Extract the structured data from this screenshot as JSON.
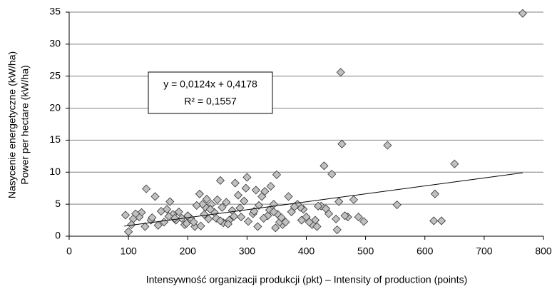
{
  "chart_data": {
    "type": "scatter",
    "xlabel": "Intensywność organizacji produkcji (pkt) – Intensity of production (points)",
    "ylabel": [
      "Nasycenie energetyczne (kW/ha)",
      "Power per hectare (kW/ha)"
    ],
    "annotations": [
      "y = 0,0124x + 0,4178",
      "R² = 0,1557"
    ],
    "trendline": {
      "slope": 0.0124,
      "intercept": 0.4178,
      "xlim": [
        93,
        765
      ]
    },
    "color": "#c0c0c0",
    "xlim": [
      0,
      800
    ],
    "xticks": [
      0,
      100,
      200,
      300,
      400,
      500,
      600,
      700,
      800
    ],
    "ylim": [
      0,
      35
    ],
    "yticks": [
      0,
      5,
      10,
      15,
      20,
      25,
      30,
      35
    ],
    "grid": true,
    "x": [
      765,
      458,
      460,
      537,
      650,
      430,
      443,
      553,
      617,
      615,
      628,
      497,
      488,
      480,
      470,
      465,
      455,
      452,
      450,
      425,
      420,
      415,
      410,
      400,
      395,
      390,
      385,
      380,
      370,
      360,
      355,
      350,
      345,
      340,
      335,
      330,
      325,
      320,
      318,
      310,
      300,
      298,
      295,
      290,
      285,
      280,
      275,
      270,
      265,
      260,
      255,
      250,
      245,
      240,
      235,
      230,
      225,
      220,
      215,
      212,
      205,
      200,
      195,
      190,
      180,
      175,
      170,
      165,
      155,
      150,
      145,
      138,
      130,
      128,
      122,
      118,
      112,
      108,
      100,
      95,
      105,
      140,
      160,
      185,
      210,
      228,
      238,
      248,
      258,
      268,
      278,
      288,
      302,
      312,
      328,
      338,
      348,
      352,
      358,
      365,
      375,
      392,
      405,
      418,
      438,
      433,
      315,
      345,
      255,
      232,
      222,
      198,
      178,
      168
    ],
    "y": [
      34.8,
      25.6,
      14.4,
      14.2,
      11.3,
      11,
      9.7,
      4.9,
      6.6,
      2.4,
      2.4,
      2.3,
      3,
      5.7,
      3,
      3.2,
      5.4,
      1,
      2.7,
      4.7,
      4.7,
      2.5,
      1.8,
      3,
      4.2,
      4.5,
      5,
      4.6,
      6.2,
      1.8,
      2.2,
      9.6,
      5,
      7.8,
      3.2,
      7,
      6.2,
      4.8,
      1.5,
      3.5,
      9.2,
      7.5,
      5.5,
      3,
      6.4,
      8.3,
      4,
      2.5,
      5.3,
      2.1,
      8.7,
      5.7,
      3.7,
      5,
      2.7,
      4.5,
      5,
      6.6,
      4.8,
      1.5,
      2.8,
      3.2,
      1.8,
      2.8,
      2.5,
      3.4,
      5.4,
      4.2,
      3.9,
      1.7,
      6.2,
      2.5,
      7.4,
      1.5,
      3.7,
      3,
      3.5,
      2.7,
      0.7,
      3.3,
      1.8,
      2.9,
      2.2,
      3.8,
      2.2,
      3.4,
      4.2,
      2.8,
      4.5,
      1.9,
      3.1,
      4.4,
      2.3,
      3.9,
      2.8,
      4.1,
      1.3,
      3.4,
      2.9,
      2.2,
      3.8,
      2.5,
      2.2,
      1.5,
      3.5,
      4.3,
      7.2,
      3.8,
      2.4,
      5.8,
      1.6,
      2.0,
      2.8,
      3.1
    ]
  }
}
